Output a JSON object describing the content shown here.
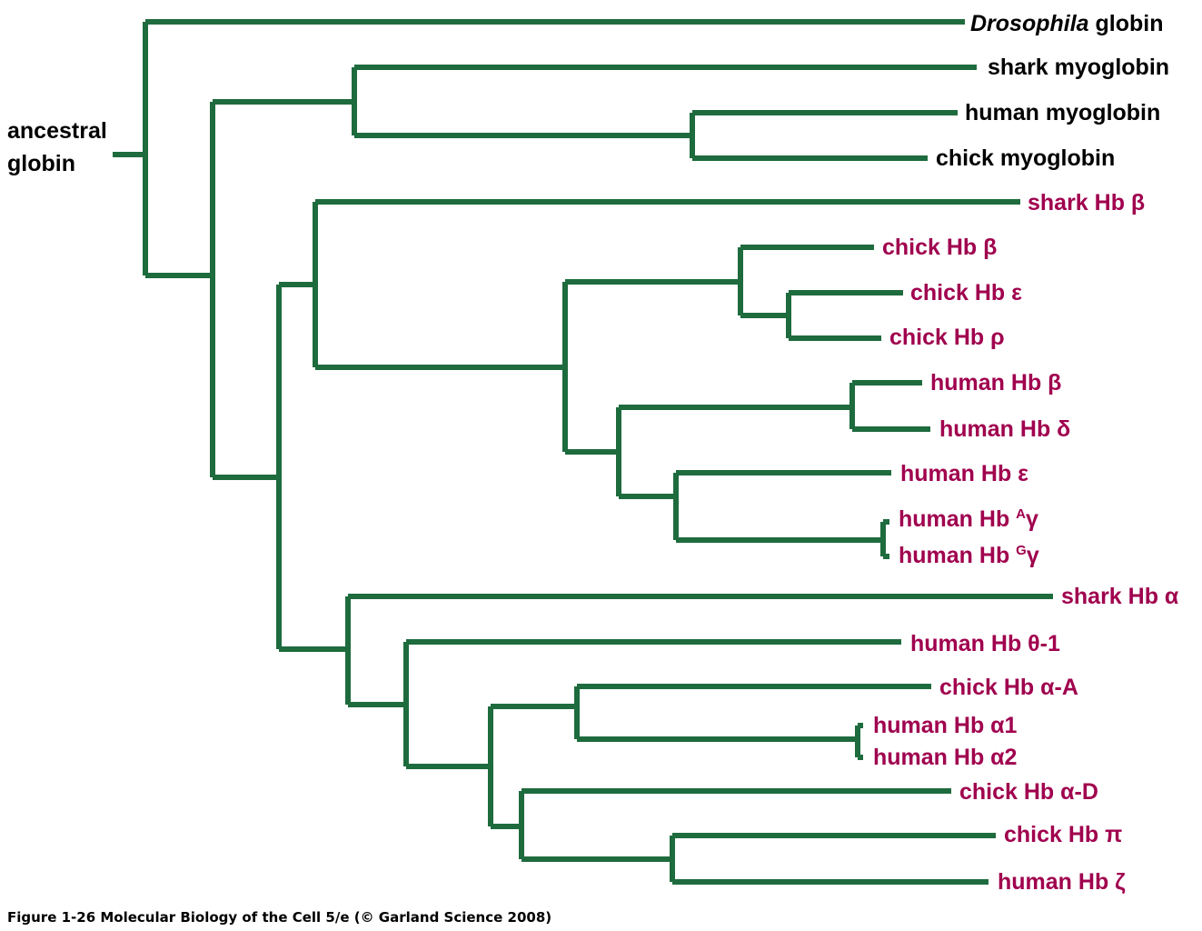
{
  "colors": {
    "branch": "#1e6b3e",
    "myoglobin_label": "#000000",
    "hemoglobin_label": "#a0004e"
  },
  "root": {
    "line1": "ancestral",
    "line2": "globin"
  },
  "leaves": [
    {
      "id": "drosophila",
      "italic": "Drosophila",
      "text": " globin",
      "group": "myoglobin"
    },
    {
      "id": "shark-myoglobin",
      "text": "shark myoglobin",
      "group": "myoglobin"
    },
    {
      "id": "human-myoglobin",
      "text": "human myoglobin",
      "group": "myoglobin"
    },
    {
      "id": "chick-myoglobin",
      "text": "chick myoglobin",
      "group": "myoglobin"
    },
    {
      "id": "shark-hb-beta",
      "text": "shark Hb β",
      "group": "hemoglobin"
    },
    {
      "id": "chick-hb-beta",
      "text": "chick Hb β",
      "group": "hemoglobin"
    },
    {
      "id": "chick-hb-epsilon",
      "text": "chick Hb ε",
      "group": "hemoglobin"
    },
    {
      "id": "chick-hb-rho",
      "text": "chick Hb ρ",
      "group": "hemoglobin"
    },
    {
      "id": "human-hb-beta",
      "text": "human Hb β",
      "group": "hemoglobin"
    },
    {
      "id": "human-hb-delta",
      "text": "human Hb δ",
      "group": "hemoglobin"
    },
    {
      "id": "human-hb-epsilon",
      "text": "human Hb ε",
      "group": "hemoglobin"
    },
    {
      "id": "human-hb-agamma",
      "text": "human Hb ",
      "sup": "A",
      "after": "γ",
      "group": "hemoglobin"
    },
    {
      "id": "human-hb-ggamma",
      "text": "human Hb ",
      "sup": "G",
      "after": "γ",
      "group": "hemoglobin"
    },
    {
      "id": "shark-hb-alpha",
      "text": "shark Hb α",
      "group": "hemoglobin"
    },
    {
      "id": "human-hb-theta1",
      "text": "human Hb θ-1",
      "group": "hemoglobin"
    },
    {
      "id": "chick-hb-alpha-a",
      "text": "chick Hb α-A",
      "group": "hemoglobin"
    },
    {
      "id": "human-hb-alpha1",
      "text": "human Hb α1",
      "group": "hemoglobin"
    },
    {
      "id": "human-hb-alpha2",
      "text": "human Hb α2",
      "group": "hemoglobin"
    },
    {
      "id": "chick-hb-alpha-d",
      "text": "chick Hb α-D",
      "group": "hemoglobin"
    },
    {
      "id": "chick-hb-pi",
      "text": "chick Hb π",
      "group": "hemoglobin"
    },
    {
      "id": "human-hb-zeta",
      "text": "human Hb ζ",
      "group": "hemoglobin"
    }
  ],
  "caption": "Figure 1-26  Molecular Biology of the Cell 5/e (© Garland Science 2008)"
}
